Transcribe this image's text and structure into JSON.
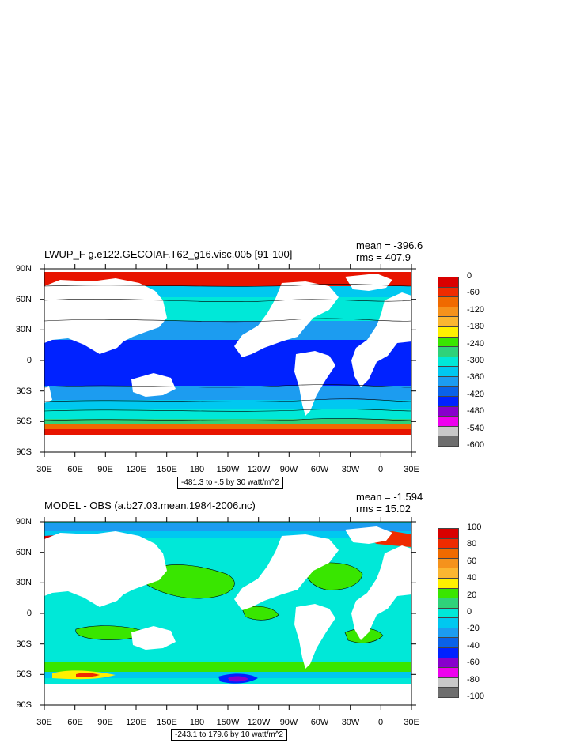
{
  "panels": [
    {
      "title": "LWUP_F g.e122.GECOIAF.T62_g16.visc.005 [91-100]",
      "mean": "mean = -396.6",
      "rms": "rms = 407.9",
      "info": "-481.3 to -.5 by 30 watt/m^2",
      "colorbar": {
        "labels": [
          "0",
          "-60",
          "-120",
          "-180",
          "-240",
          "-300",
          "-360",
          "-420",
          "-480",
          "-540",
          "-600"
        ],
        "colors": [
          "#d90000",
          "#ef2b00",
          "#f06a00",
          "#f5921c",
          "#fbb631",
          "#fff000",
          "#39e600",
          "#2fd27a",
          "#00e8d8",
          "#00c8f0",
          "#1c9cf0",
          "#0a62e8",
          "#0022ff",
          "#8800cc",
          "#ee00ee",
          "#c8c8c8",
          "#6e6e6e"
        ]
      }
    },
    {
      "title": "MODEL - OBS (a.b27.03.mean.1984-2006.nc)",
      "mean": "mean = -1.594",
      "rms": "rms = 15.02",
      "info": "-243.1 to 179.6 by 10 watt/m^2",
      "colorbar": {
        "labels": [
          "100",
          "80",
          "60",
          "40",
          "20",
          "0",
          "-20",
          "-40",
          "-60",
          "-80",
          "-100"
        ],
        "colors": [
          "#d90000",
          "#ef2b00",
          "#f06a00",
          "#f5921c",
          "#fbb631",
          "#fff000",
          "#39e600",
          "#2fd27a",
          "#00e8d8",
          "#00c8f0",
          "#1c9cf0",
          "#0a62e8",
          "#0022ff",
          "#8800cc",
          "#ee00ee",
          "#c8c8c8",
          "#6e6e6e"
        ]
      }
    }
  ],
  "axes": {
    "lat_labels": [
      "90N",
      "60N",
      "30N",
      "0",
      "30S",
      "60S",
      "90S"
    ],
    "lon_labels": [
      "30E",
      "60E",
      "90E",
      "120E",
      "150E",
      "180",
      "150W",
      "120W",
      "90W",
      "60W",
      "30W",
      "0",
      "30E"
    ]
  }
}
